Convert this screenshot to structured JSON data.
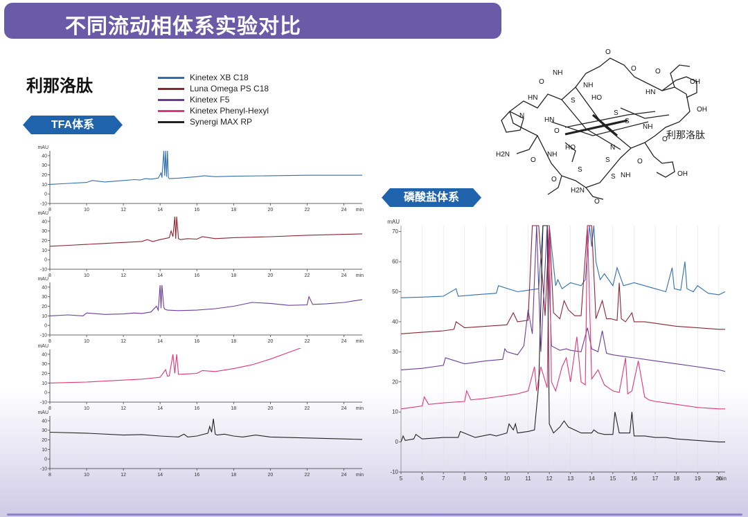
{
  "header": {
    "title": "不同流动相体系实验对比"
  },
  "compound": {
    "name": "利那洛肽"
  },
  "legend": [
    {
      "label": "Kinetex XB C18",
      "color": "#2f6fb0"
    },
    {
      "label": "Luna Omega PS C18",
      "color": "#8b2330"
    },
    {
      "label": "Kinetex F5",
      "color": "#6a3b9c"
    },
    {
      "label": "Kinetex Phenyl-Hexyl",
      "color": "#e0357a"
    },
    {
      "label": "Synergi MAX RP",
      "color": "#222222"
    }
  ],
  "tags": {
    "tfa": "TFA体系",
    "phosphate": "磷酸盐体系"
  },
  "molecule": {
    "caption": "利那洛肽",
    "labels": [
      "N",
      "HN",
      "NH",
      "NH",
      "HO",
      "S",
      "S",
      "S",
      "S",
      "S",
      "S",
      "HO",
      "OH",
      "OH",
      "O",
      "O",
      "O",
      "O",
      "O",
      "O",
      "O",
      "O",
      "O",
      "O",
      "H2N",
      "H2N",
      "HN",
      "NH",
      "HN",
      "NH",
      "NH",
      "N",
      "OH"
    ]
  },
  "chart_data": [
    {
      "type": "line",
      "panel": "TFA-1",
      "series_name": "Kinetex XB C18",
      "color": "#2f6fb0",
      "ylabel": "mAU",
      "xlabel": "min",
      "xlim": [
        8,
        25
      ],
      "ylim": [
        -10,
        45
      ],
      "xticks": [
        8,
        10,
        12,
        14,
        16,
        18,
        20,
        22,
        24
      ],
      "yticks": [
        -10,
        0,
        10,
        20,
        30,
        40
      ],
      "series": [
        {
          "x": [
            8,
            9,
            10,
            10.3,
            11,
            12,
            12.6,
            12.9,
            13.2,
            13.5,
            13.9,
            14.05,
            14.1,
            14.2,
            14.25,
            14.3,
            14.35,
            14.4,
            14.45,
            14.5,
            15,
            16,
            16.4,
            17,
            18,
            20,
            22,
            24,
            25
          ],
          "y": [
            10,
            11,
            12,
            14,
            12.5,
            14,
            15,
            14.5,
            16,
            15.5,
            16.5,
            22,
            17,
            45,
            19,
            45,
            18,
            45,
            17,
            16,
            16.5,
            18,
            19,
            18,
            18.5,
            19,
            19.5,
            19.5,
            19.5
          ]
        }
      ]
    },
    {
      "type": "line",
      "panel": "TFA-2",
      "series_name": "Luna Omega PS C18",
      "color": "#8b2330",
      "ylabel": "mAU",
      "xlabel": "min",
      "xlim": [
        8,
        25
      ],
      "ylim": [
        -10,
        45
      ],
      "xticks": [
        8,
        10,
        12,
        14,
        16,
        18,
        20,
        22,
        24
      ],
      "yticks": [
        -10,
        0,
        10,
        20,
        30,
        40
      ],
      "series": [
        {
          "x": [
            8,
            9,
            10,
            11,
            12,
            13,
            13.3,
            13.6,
            14,
            14.5,
            14.6,
            14.7,
            14.8,
            14.85,
            14.9,
            15,
            15.1,
            15.5,
            16,
            16.3,
            17,
            18,
            20,
            22,
            24,
            25
          ],
          "y": [
            14,
            15,
            16,
            17,
            18,
            19,
            21,
            19,
            21,
            23,
            30,
            24,
            45,
            22,
            45,
            22,
            21,
            22,
            21.5,
            24,
            22,
            23,
            24,
            25.5,
            26.5,
            27
          ]
        }
      ]
    },
    {
      "type": "line",
      "panel": "TFA-3",
      "series_name": "Kinetex F5",
      "color": "#6a3b9c",
      "ylabel": "mAU",
      "xlabel": "min",
      "xlim": [
        8,
        25
      ],
      "ylim": [
        -10,
        45
      ],
      "xticks": [
        8,
        10,
        12,
        14,
        16,
        18,
        20,
        22,
        24
      ],
      "yticks": [
        -10,
        0,
        10,
        20,
        30,
        40
      ],
      "series": [
        {
          "x": [
            8,
            9,
            9.8,
            10,
            11,
            12,
            12.6,
            13,
            13.5,
            13.8,
            13.9,
            14,
            14.05,
            14.1,
            14.2,
            14.25,
            14.4,
            15,
            16,
            17,
            18,
            19,
            20,
            21,
            22,
            22.1,
            22.3,
            23,
            24,
            25
          ],
          "y": [
            10,
            11,
            10,
            13,
            11.5,
            12,
            13,
            12.5,
            14,
            20,
            16,
            42,
            18,
            42,
            19,
            17,
            16,
            15.5,
            16,
            17.5,
            20,
            24,
            23,
            21,
            21.5,
            30,
            22,
            22.5,
            24,
            27
          ]
        }
      ]
    },
    {
      "type": "line",
      "panel": "TFA-4",
      "series_name": "Kinetex Phenyl-Hexyl",
      "color": "#e0357a",
      "ylabel": "mAU",
      "xlabel": "min",
      "xlim": [
        8,
        25
      ],
      "ylim": [
        -10,
        45
      ],
      "xticks": [
        8,
        10,
        12,
        14,
        16,
        18,
        20,
        22,
        24
      ],
      "yticks": [
        -10,
        0,
        10,
        20,
        30,
        40
      ],
      "series": [
        {
          "x": [
            8,
            9,
            10,
            11,
            12,
            13,
            13.5,
            14,
            14.3,
            14.4,
            14.5,
            14.7,
            14.8,
            14.9,
            15,
            15.5,
            16,
            16.3,
            17,
            18,
            19,
            20,
            21,
            22,
            22.6
          ],
          "y": [
            10,
            10.5,
            11,
            12,
            13,
            14,
            15,
            16,
            24,
            17,
            17.5,
            40,
            20,
            40,
            19,
            19.5,
            20,
            23,
            22,
            25,
            29,
            35,
            42,
            49,
            55
          ]
        }
      ]
    },
    {
      "type": "line",
      "panel": "TFA-5",
      "series_name": "Synergi MAX RP",
      "color": "#222222",
      "ylabel": "mAU",
      "xlabel": "min",
      "xlim": [
        8,
        25
      ],
      "ylim": [
        -10,
        45
      ],
      "xticks": [
        8,
        10,
        12,
        14,
        16,
        18,
        20,
        22,
        24
      ],
      "yticks": [
        -10,
        0,
        10,
        20,
        30,
        40
      ],
      "series": [
        {
          "x": [
            8,
            10,
            12,
            13,
            14,
            15,
            15.3,
            15.5,
            16,
            16.6,
            16.7,
            16.8,
            16.9,
            17,
            17.1,
            17.5,
            18,
            18.5,
            19.2,
            20,
            22,
            24,
            25
          ],
          "y": [
            28,
            27,
            25,
            25.5,
            24,
            23,
            26,
            23,
            24,
            27,
            34,
            28,
            42,
            26,
            25,
            26,
            24,
            23,
            25,
            23,
            22,
            21,
            20.5
          ]
        }
      ]
    },
    {
      "type": "line",
      "panel": "phosphate",
      "ylabel": "mAU",
      "xlabel": "min",
      "xlim": [
        5,
        20.3
      ],
      "ylim": [
        -10,
        72
      ],
      "xticks": [
        5,
        6,
        7,
        8,
        9,
        10,
        11,
        12,
        13,
        14,
        15,
        16,
        17,
        18,
        19,
        20
      ],
      "yticks": [
        -10,
        0,
        10,
        20,
        30,
        40,
        50,
        60,
        70
      ],
      "series": [
        {
          "name": "Kinetex XB C18",
          "color": "#2f6fb0",
          "x": [
            5,
            6,
            7,
            7.6,
            7.7,
            8.5,
            9.5,
            9.6,
            10.5,
            11,
            11.5,
            11.7,
            12,
            12.3,
            12.4,
            12.6,
            13,
            13.5,
            13.7,
            13.9,
            14,
            14.1,
            14.2,
            14.4,
            14.6,
            15,
            15.2,
            15.5,
            16,
            16.5,
            17,
            17.5,
            17.8,
            17.9,
            18.2,
            18.4,
            18.5,
            18.8,
            19,
            19.5,
            20,
            20.3
          ],
          "y": [
            48,
            48.2,
            48.5,
            51,
            48.5,
            49,
            49.5,
            52,
            50,
            50.5,
            51,
            72,
            72,
            52,
            54,
            51,
            53,
            52,
            54,
            72,
            65,
            72,
            60,
            54,
            56,
            52,
            58,
            52,
            53,
            52,
            51,
            50,
            58,
            51,
            50.5,
            60,
            51,
            50,
            52,
            49.5,
            49,
            50
          ]
        },
        {
          "name": "Luna Omega PS C18",
          "color": "#8b2330",
          "x": [
            5,
            6,
            7,
            7.5,
            7.6,
            8,
            9,
            10,
            10.3,
            10.5,
            11,
            11.2,
            11.5,
            11.8,
            12,
            12.2,
            12.5,
            12.7,
            12.9,
            13.2,
            13.5,
            13.8,
            14,
            14.2,
            14.5,
            14.7,
            14.9,
            15.2,
            15.3,
            15.4,
            15.6,
            15.9,
            16,
            16.5,
            17,
            17.5,
            18,
            19,
            20,
            20.3
          ],
          "y": [
            36,
            36.5,
            37,
            37.5,
            40,
            38,
            38.5,
            39,
            43,
            40,
            40.5,
            72,
            72,
            42,
            72,
            43,
            41,
            47,
            44,
            42,
            42,
            72,
            72,
            41,
            47,
            41,
            41,
            40.5,
            53,
            41,
            40,
            43,
            40,
            40,
            39.5,
            39,
            38.5,
            38,
            37.5,
            37.5
          ]
        },
        {
          "name": "Kinetex F5",
          "color": "#6a3b9c",
          "x": [
            5,
            6,
            6.5,
            7,
            7.1,
            8,
            9,
            9.8,
            9.9,
            10,
            10.5,
            10.8,
            11,
            11.2,
            11.4,
            11.6,
            11.9,
            12.1,
            12.5,
            12.8,
            13,
            13.5,
            13.8,
            14,
            14.3,
            14.5,
            14.7,
            15,
            15.5,
            16,
            17,
            18,
            19,
            20,
            20.3
          ],
          "y": [
            24,
            24.5,
            25,
            25.5,
            28,
            26,
            27,
            27.5,
            31,
            30,
            29,
            32,
            44,
            36,
            72,
            30,
            72,
            32,
            30.5,
            31,
            30.5,
            30,
            38,
            31,
            30,
            37,
            29.5,
            29,
            28.5,
            28,
            27,
            26,
            25,
            24,
            23.5
          ]
        },
        {
          "name": "Kinetex Phenyl-Hexyl",
          "color": "#e0357a",
          "x": [
            5,
            5.5,
            6,
            6.1,
            6.3,
            7,
            8,
            8.1,
            8.3,
            9,
            9.5,
            10,
            10.5,
            11,
            11.3,
            11.4,
            11.6,
            11.9,
            12,
            12.1,
            12.3,
            12.6,
            12.8,
            13,
            13.3,
            13.5,
            13.7,
            13.8,
            14,
            14.3,
            14.6,
            14.8,
            15,
            15.3,
            15.6,
            15.7,
            15.9,
            16.2,
            16.5,
            16.7,
            17,
            17.5,
            18,
            18.5,
            19,
            20,
            20.3
          ],
          "y": [
            11,
            11.5,
            12,
            15,
            12.5,
            13,
            13.5,
            17,
            14,
            14.5,
            15,
            15.5,
            16,
            17,
            25,
            17,
            25,
            18,
            72,
            20,
            17,
            25,
            28,
            20,
            35,
            20,
            19,
            72,
            21,
            24,
            19,
            18,
            17,
            16.5,
            28,
            16,
            17,
            27,
            15,
            14,
            13.5,
            13,
            12.5,
            12,
            11.5,
            11,
            11
          ]
        },
        {
          "name": "Synergi MAX RP",
          "color": "#222222",
          "x": [
            5,
            5.1,
            5.2,
            5.6,
            5.7,
            6,
            7,
            7.7,
            7.8,
            8.5,
            9.2,
            9.5,
            10,
            10.1,
            10.3,
            10.4,
            10.5,
            11,
            11.3,
            11.5,
            11.7,
            11.9,
            12,
            12.2,
            12.5,
            12.7,
            12.9,
            13.2,
            13.5,
            14,
            14.1,
            14.3,
            14.6,
            15,
            15.1,
            15.3,
            15.8,
            15.9,
            16,
            16.5,
            17,
            17.5,
            18,
            19,
            20,
            20.3
          ],
          "y": [
            0,
            2,
            0.5,
            1,
            2.5,
            1,
            1.5,
            1.5,
            3.5,
            1.5,
            2.5,
            2,
            3,
            6,
            4,
            6,
            3,
            3.5,
            4,
            19,
            72,
            72,
            6,
            3,
            5,
            7,
            5,
            4,
            3,
            3,
            4,
            3,
            2.5,
            2.5,
            10,
            3,
            3,
            10,
            2,
            2,
            1.5,
            1.5,
            1,
            0.5,
            0,
            0
          ]
        }
      ]
    }
  ]
}
